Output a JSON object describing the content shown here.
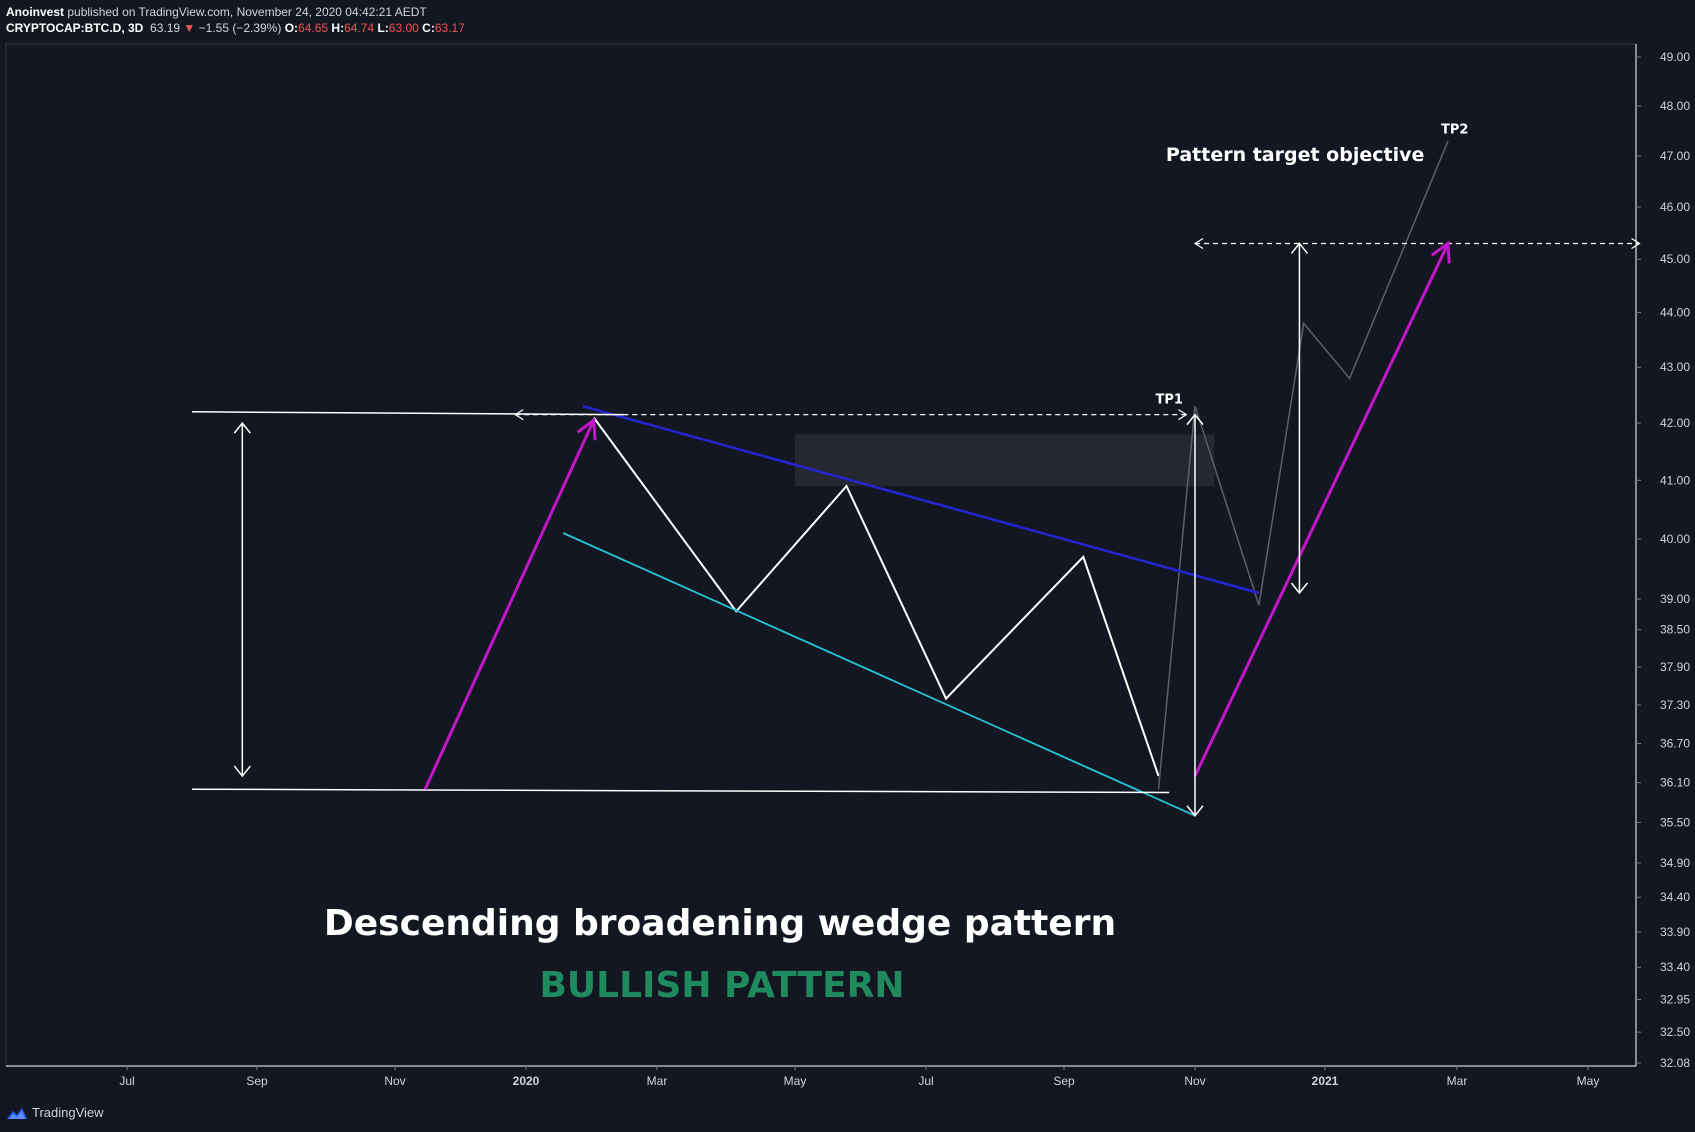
{
  "header": {
    "author": "Anoinvest",
    "published_text": "published on TradingView.com, November 24, 2020 04:42:21 AEDT",
    "symbol": "CRYPTOCAP:BTC.D, 3D",
    "last": "63.19",
    "change_arrow": "▼",
    "change": "−1.55 (−2.39%)",
    "open_label": "O:",
    "open": "64.65",
    "high_label": "H:",
    "high": "64.74",
    "low_label": "L:",
    "low": "63.00",
    "close_label": "C:",
    "close": "63.17"
  },
  "footer": {
    "brand": "TradingView",
    "logo_icon": "tradingview-logo-icon"
  },
  "colors": {
    "background": "#131722",
    "price_line": "#ffffff",
    "projection": "#5d606b",
    "resistance": "#2424d4",
    "support": "#26c6da",
    "measure_arrow": "#c217c8",
    "bullish": "#1e8a5e",
    "zone": "#252830"
  },
  "chart_data": {
    "type": "line",
    "title": "Descending broadening wedge pattern",
    "subtitle": "BULLISH PATTERN",
    "x_ticks": [
      "Jul",
      "Sep",
      "Nov",
      "2020",
      "Mar",
      "May",
      "Jul",
      "Sep",
      "Nov",
      "2021",
      "Mar",
      "May"
    ],
    "x_tick_dates": [
      "2019-07-01",
      "2019-09-01",
      "2019-11-01",
      "2020-01-01",
      "2020-03-01",
      "2020-05-01",
      "2020-07-01",
      "2020-09-01",
      "2020-11-01",
      "2021-01-01",
      "2021-03-01",
      "2021-05-01"
    ],
    "y_ticks": [
      49.0,
      48.0,
      47.0,
      46.0,
      45.0,
      44.0,
      43.0,
      42.0,
      41.0,
      40.0,
      39.0,
      38.5,
      37.9,
      37.3,
      36.7,
      36.1,
      35.5,
      34.9,
      34.4,
      33.9,
      33.4,
      32.95,
      32.5,
      32.08
    ],
    "y_tick_labels": [
      "49.00",
      "48.00",
      "47.00",
      "46.00",
      "45.00",
      "44.00",
      "43.00",
      "42.00",
      "41.00",
      "40.00",
      "39.00",
      "38.50",
      "37.90",
      "37.30",
      "36.70",
      "36.10",
      "35.50",
      "34.90",
      "34.40",
      "33.90",
      "33.40",
      "32.95",
      "32.50",
      "32.08"
    ],
    "series": [
      {
        "role": "price",
        "points": [
          [
            "2020-02-01",
            42.1
          ],
          [
            "2020-04-05",
            38.8
          ],
          [
            "2020-05-25",
            40.9
          ],
          [
            "2020-07-10",
            37.4
          ],
          [
            "2020-09-10",
            39.7
          ],
          [
            "2020-10-15",
            36.2
          ]
        ]
      },
      {
        "role": "projection",
        "points": [
          [
            "2020-10-15",
            36.0
          ],
          [
            "2020-11-01",
            42.3
          ],
          [
            "2020-12-01",
            38.9
          ],
          [
            "2020-12-22",
            43.8
          ],
          [
            "2021-01-12",
            42.8
          ],
          [
            "2021-02-25",
            47.3
          ]
        ]
      },
      {
        "role": "resistance",
        "points": [
          [
            "2020-01-27",
            42.3
          ],
          [
            "2020-12-01",
            39.1
          ]
        ]
      },
      {
        "role": "support",
        "points": [
          [
            "2020-01-18",
            40.1
          ],
          [
            "2020-11-01",
            35.6
          ]
        ]
      },
      {
        "role": "top-horizontal",
        "points": [
          [
            "2019-08-01",
            42.2
          ],
          [
            "2020-02-15",
            42.15
          ]
        ]
      },
      {
        "role": "bottom-horizontal",
        "points": [
          [
            "2019-08-01",
            36.0
          ],
          [
            "2020-10-20",
            35.95
          ]
        ]
      },
      {
        "role": "measure-arrow-left",
        "points": [
          [
            "2019-11-15",
            36.0
          ],
          [
            "2020-02-01",
            42.05
          ]
        ]
      },
      {
        "role": "measure-arrow-right",
        "points": [
          [
            "2020-11-01",
            36.2
          ],
          [
            "2021-02-25",
            45.3
          ]
        ]
      }
    ],
    "dashed_lines": [
      {
        "from": [
          "2019-12-27",
          42.15
        ],
        "to": [
          "2020-10-28",
          42.15
        ]
      },
      {
        "from": [
          "2020-11-01",
          45.3
        ],
        "to": [
          "2021-05-25",
          45.3
        ]
      }
    ],
    "vertical_measures": [
      {
        "x": "2019-08-25",
        "y1": 42.0,
        "y2": 36.2
      },
      {
        "x": "2020-11-01",
        "y1": 42.15,
        "y2": 35.6
      },
      {
        "x": "2020-12-20",
        "y1": 45.3,
        "y2": 39.1
      }
    ],
    "zones": [
      {
        "x1": "2020-05-01",
        "x2": "2020-11-10",
        "y1": 41.8,
        "y2": 40.9
      }
    ],
    "annotations": [
      {
        "text": "Pattern target objective",
        "x": "2020-12-18",
        "y": 46.9
      },
      {
        "text": "TP1",
        "x": "2020-10-20",
        "y": 42.35
      },
      {
        "text": "TP2",
        "x": "2021-02-28",
        "y": 47.45
      }
    ],
    "grid": false
  }
}
